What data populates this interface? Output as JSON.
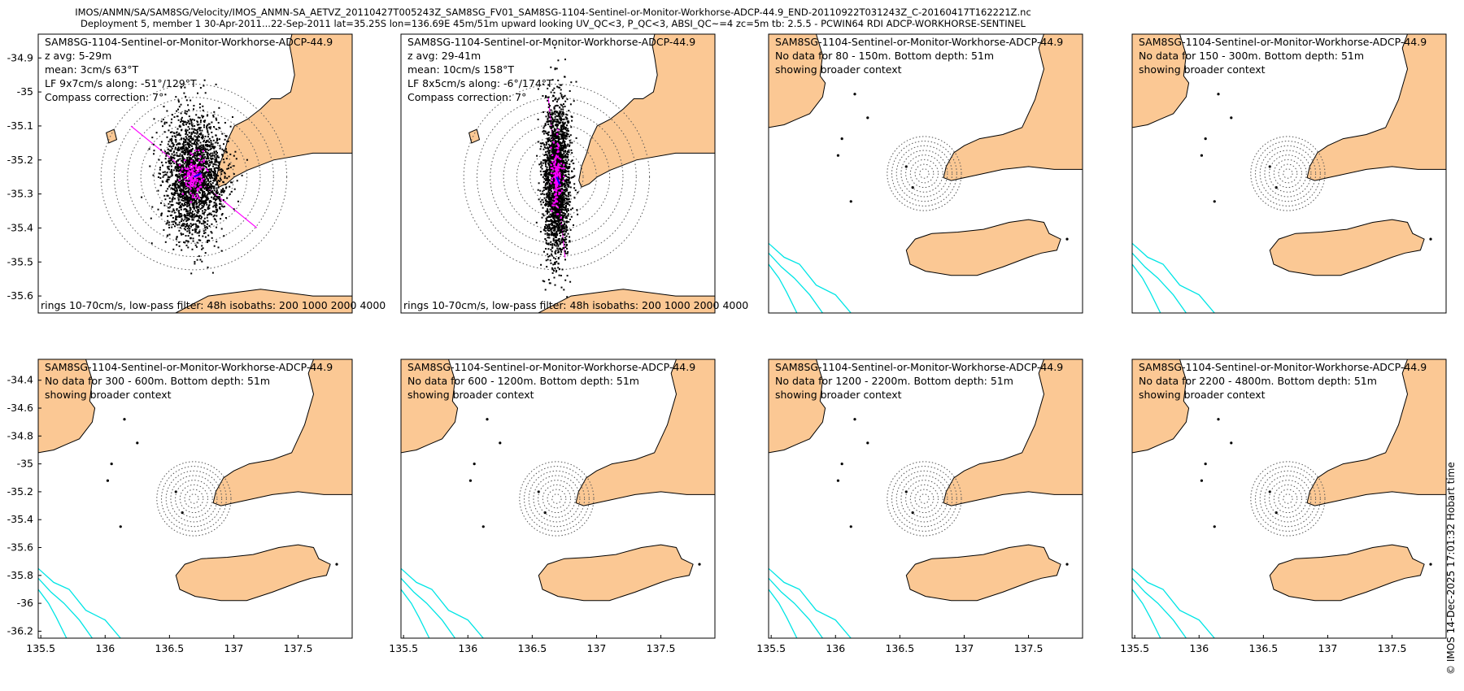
{
  "figure": {
    "title_line1": "IMOS/ANMN/SA/SAM8SG/Velocity/IMOS_ANMN-SA_AETVZ_20110427T005243Z_SAM8SG_FV01_SAM8SG-1104-Sentinel-or-Monitor-Workhorse-ADCP-44.9_END-20110922T031243Z_C-20160417T162221Z.nc",
    "title_line2": "Deployment 5, member 1 30-Apr-2011...22-Sep-2011 lat=35.25S lon=136.69E 45m/51m upward looking UV_QC<3, P_QC<3, ABSI_QC~=4 zc=5m tb: 2.5.5 - PCWIN64 RDI ADCP-WORKHORSE-SENTINEL",
    "watermark": "© IMOS 14-Dec-2025 17:01:32 Hobart time",
    "colors": {
      "land": "#fbc894",
      "isobath": "#00e5e5",
      "scatter": "#000000",
      "lowpass": "#ff00ff",
      "mean": "#0000ff",
      "rings": "#555555"
    }
  },
  "chart_data": [
    {
      "type": "scatter",
      "panel": "top-1",
      "instrument": "SAM8SG-1104-Sentinel-or-Monitor-Workhorse-ADCP-44.9",
      "lines": [
        "z avg: 5-29m",
        "mean: 3cm/s 63°T",
        "LF 9x7cm/s along: -51°/129°T",
        "Compass correction: 7°"
      ],
      "footer": "rings 10-70cm/s, low-pass filter: 48h isobaths: 200 1000 2000 4000",
      "xlim": [
        135.5,
        137.9
      ],
      "ylim": [
        -35.65,
        -34.83
      ],
      "yticks": [
        "-34.9",
        "-35",
        "-35.1",
        "-35.2",
        "-35.3",
        "-35.4",
        "-35.5",
        "-35.6"
      ],
      "ytick_values": [
        -34.9,
        -35.0,
        -35.1,
        -35.2,
        -35.3,
        -35.4,
        -35.5,
        -35.6
      ],
      "xticks": [],
      "center": [
        136.69,
        -35.25
      ],
      "rings_cm_s": [
        10,
        20,
        30,
        40,
        50,
        60,
        70
      ],
      "ring_spacing_deg": 0.039,
      "scatter_spread": [
        0.115,
        0.085
      ],
      "lowpass_spread": [
        0.028,
        0.02
      ],
      "mean_vector_deg": 63,
      "along_axis_deg": 129,
      "show_ticks": true
    },
    {
      "type": "scatter",
      "panel": "top-2",
      "instrument": "SAM8SG-1104-Sentinel-or-Monitor-Workhorse-ADCP-44.9",
      "lines": [
        "z avg: 29-41m",
        "mean: 10cm/s 158°T",
        "LF 8x5cm/s along: -6°/174°T",
        "Compass correction: 7°"
      ],
      "footer": "rings 10-70cm/s, low-pass filter: 48h isobaths: 200 1000 2000 4000",
      "xlim": [
        135.5,
        137.9
      ],
      "ylim": [
        -35.65,
        -34.83
      ],
      "yticks": [],
      "ytick_values": [],
      "xticks": [],
      "center": [
        136.69,
        -35.25
      ],
      "rings_cm_s": [
        10,
        20,
        30,
        40,
        50,
        60,
        70
      ],
      "ring_spacing_deg": 0.039,
      "scatter_spread": [
        0.05,
        0.115
      ],
      "lowpass_spread": [
        0.012,
        0.03
      ],
      "mean_vector_deg": 158,
      "along_axis_deg": 174,
      "show_ticks": false
    },
    {
      "type": "map",
      "panel": "top-3",
      "instrument": "SAM8SG-1104-Sentinel-or-Monitor-Workhorse-ADCP-44.9",
      "lines": [
        "No data for 80 - 150m. Bottom depth: 51m",
        "showing broader context"
      ],
      "show_ticks": false,
      "yticks": [],
      "xticks": []
    },
    {
      "type": "map",
      "panel": "top-4",
      "instrument": "SAM8SG-1104-Sentinel-or-Monitor-Workhorse-ADCP-44.9",
      "lines": [
        "No data for 150 - 300m. Bottom depth: 51m",
        "showing broader context"
      ],
      "show_ticks": false,
      "yticks": [],
      "xticks": []
    },
    {
      "type": "map",
      "panel": "bottom-1",
      "instrument": "SAM8SG-1104-Sentinel-or-Monitor-Workhorse-ADCP-44.9",
      "lines": [
        "No data for 300 - 600m. Bottom depth: 51m",
        "showing broader context"
      ],
      "show_ticks": true,
      "yticks": [
        "-34.4",
        "-34.6",
        "-34.8",
        "-35",
        "-35.2",
        "-35.4",
        "-35.6",
        "-35.8",
        "-36",
        "-36.2"
      ],
      "xticks": [
        "135.5",
        "136",
        "136.5",
        "137",
        "137.5"
      ]
    },
    {
      "type": "map",
      "panel": "bottom-2",
      "instrument": "SAM8SG-1104-Sentinel-or-Monitor-Workhorse-ADCP-44.9",
      "lines": [
        "No data for 600 - 1200m. Bottom depth: 51m",
        "showing broader context"
      ],
      "show_ticks": false,
      "yticks": [],
      "xticks": [
        "135.5",
        "136",
        "136.5",
        "137",
        "137.5"
      ]
    },
    {
      "type": "map",
      "panel": "bottom-3",
      "instrument": "SAM8SG-1104-Sentinel-or-Monitor-Workhorse-ADCP-44.9",
      "lines": [
        "No data for 1200 - 2200m. Bottom depth: 51m",
        "showing broader context"
      ],
      "show_ticks": false,
      "yticks": [],
      "xticks": [
        "135.5",
        "136",
        "136.5",
        "137",
        "137.5"
      ]
    },
    {
      "type": "map",
      "panel": "bottom-4",
      "instrument": "SAM8SG-1104-Sentinel-or-Monitor-Workhorse-ADCP-44.9",
      "lines": [
        "No data for 2200 - 4800m. Bottom depth: 51m",
        "showing broader context"
      ],
      "show_ticks": false,
      "yticks": [],
      "xticks": [
        "135.5",
        "136",
        "136.5",
        "137",
        "137.5"
      ]
    }
  ]
}
